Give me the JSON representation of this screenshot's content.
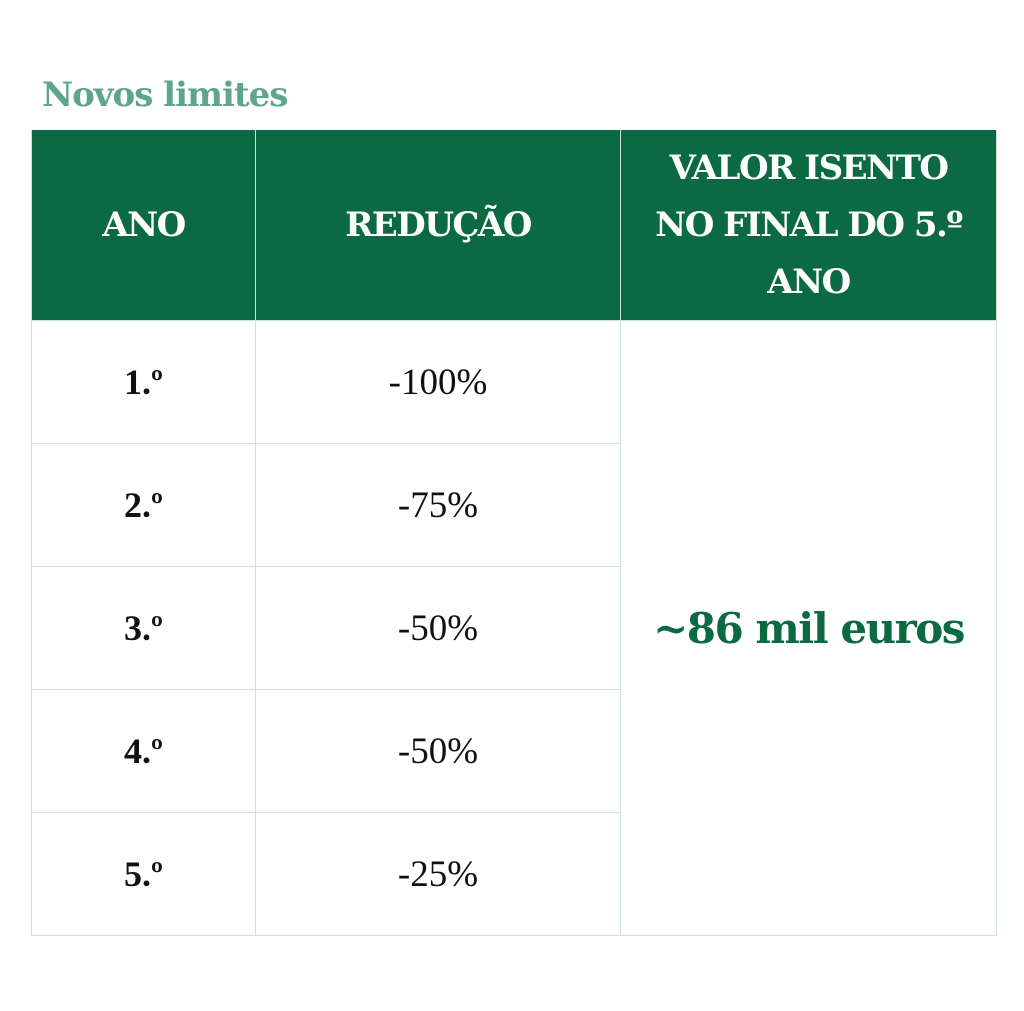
{
  "title": "Novos limites",
  "colors": {
    "header_bg": "#0b6a44",
    "title": "#5fa58a",
    "accent_text": "#0b6a44",
    "grid_lines": "#cfe0d8"
  },
  "table": {
    "headers": {
      "year": "ANO",
      "reduction": "REDUÇÃO",
      "exempt_line1": "VALOR ISENTO",
      "exempt_line2": "NO FINAL DO 5.º",
      "exempt_line3": "ANO"
    },
    "rows": [
      {
        "year": "1.º",
        "reduction": "-100%"
      },
      {
        "year": "2.º",
        "reduction": "-75%"
      },
      {
        "year": "3.º",
        "reduction": "-50%"
      },
      {
        "year": "4.º",
        "reduction": "-50%"
      },
      {
        "year": "5.º",
        "reduction": "-25%"
      }
    ],
    "exempt_value": "~86 mil euros"
  }
}
